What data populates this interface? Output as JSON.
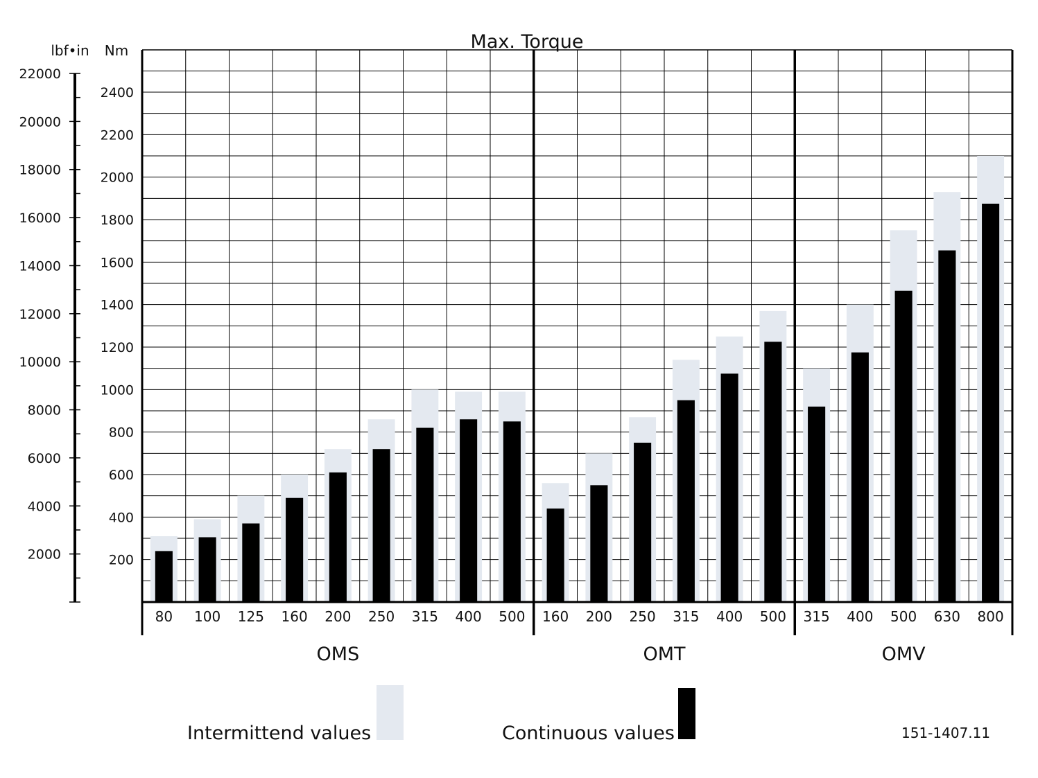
{
  "chart_data": {
    "type": "bar",
    "title": "Max. Torque",
    "y_unit_left": "lbf•in",
    "y_unit_right": "Nm",
    "ylim_nm": [
      0,
      2600
    ],
    "ylim_lbf": [
      0,
      22000
    ],
    "nm_ticks": [
      "200",
      "400",
      "600",
      "800",
      "1000",
      "1200",
      "1400",
      "1600",
      "1800",
      "2000",
      "2200",
      "2400"
    ],
    "lbf_ticks": [
      "2000",
      "4000",
      "6000",
      "8000",
      "10000",
      "12000",
      "14000",
      "16000",
      "18000",
      "20000",
      "22000"
    ],
    "grid": true,
    "legend_placement": "bottom",
    "groups": [
      {
        "name": "OMS",
        "categories": [
          "80",
          "100",
          "125",
          "160",
          "200",
          "250",
          "315",
          "400",
          "500"
        ]
      },
      {
        "name": "OMT",
        "categories": [
          "160",
          "200",
          "250",
          "315",
          "400",
          "500"
        ]
      },
      {
        "name": "OMV",
        "categories": [
          "315",
          "400",
          "500",
          "630",
          "800"
        ]
      }
    ],
    "series": [
      {
        "name": "Intermittend values",
        "color": "#e4e9f0",
        "values": [
          310,
          390,
          500,
          600,
          720,
          860,
          1000,
          990,
          990,
          560,
          700,
          870,
          1140,
          1250,
          1370,
          1100,
          1400,
          1750,
          1930,
          2100
        ]
      },
      {
        "name": "Continuous values",
        "color": "#000000",
        "values": [
          240,
          305,
          370,
          490,
          610,
          720,
          820,
          860,
          850,
          440,
          550,
          750,
          950,
          1075,
          1225,
          920,
          1175,
          1465,
          1655,
          1875
        ]
      }
    ],
    "doc_code": "151-1407.11"
  }
}
